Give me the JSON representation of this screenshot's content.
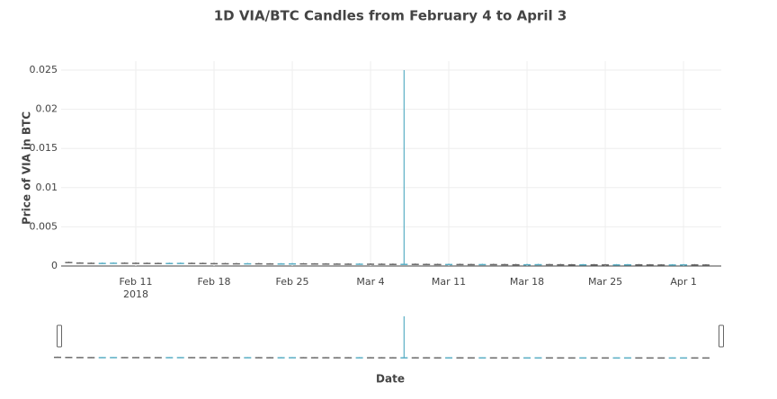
{
  "chart_data": {
    "type": "candlestick",
    "title": "1D VIA/BTC Candles from February 4 to April 3",
    "x_label": "Date",
    "y_label": "Price of VIA in BTC",
    "x": [
      "2018-02-04",
      "2018-02-05",
      "2018-02-06",
      "2018-02-07",
      "2018-02-08",
      "2018-02-09",
      "2018-02-10",
      "2018-02-11",
      "2018-02-12",
      "2018-02-13",
      "2018-02-14",
      "2018-02-15",
      "2018-02-16",
      "2018-02-17",
      "2018-02-18",
      "2018-02-19",
      "2018-02-20",
      "2018-02-21",
      "2018-02-22",
      "2018-02-23",
      "2018-02-24",
      "2018-02-25",
      "2018-02-26",
      "2018-02-27",
      "2018-02-28",
      "2018-03-01",
      "2018-03-02",
      "2018-03-03",
      "2018-03-04",
      "2018-03-05",
      "2018-03-06",
      "2018-03-07",
      "2018-03-08",
      "2018-03-09",
      "2018-03-10",
      "2018-03-11",
      "2018-03-12",
      "2018-03-13",
      "2018-03-14",
      "2018-03-15",
      "2018-03-16",
      "2018-03-17",
      "2018-03-18",
      "2018-03-19",
      "2018-03-20",
      "2018-03-21",
      "2018-03-22",
      "2018-03-23",
      "2018-03-24",
      "2018-03-25",
      "2018-03-26",
      "2018-03-27",
      "2018-03-28",
      "2018-03-29",
      "2018-03-30",
      "2018-03-31",
      "2018-04-01",
      "2018-04-02",
      "2018-04-03"
    ],
    "open": [
      0.0006,
      0.00052,
      0.00045,
      0.00042,
      0.0004,
      0.00041,
      0.00043,
      0.00042,
      0.00041,
      0.0004,
      0.00039,
      0.0004,
      0.00041,
      0.0004,
      0.00038,
      0.00037,
      0.00036,
      0.00035,
      0.00036,
      0.00034,
      0.00033,
      0.00034,
      0.00035,
      0.00034,
      0.00033,
      0.00032,
      0.00031,
      0.0003,
      0.00031,
      0.0003,
      0.00029,
      0.00028,
      0.00029,
      0.00028,
      0.00027,
      0.00026,
      0.00027,
      0.00026,
      0.00025,
      0.00026,
      0.00025,
      0.00024,
      0.00023,
      0.00024,
      0.00025,
      0.00024,
      0.00023,
      0.00022,
      0.00023,
      0.00022,
      0.00021,
      0.00022,
      0.00023,
      0.00022,
      0.00021,
      0.0002,
      0.00021,
      0.00022,
      0.00021
    ],
    "high": [
      0.00063,
      0.00055,
      0.00048,
      0.00045,
      0.00044,
      0.00046,
      0.00046,
      0.00045,
      0.00044,
      0.00043,
      0.00043,
      0.00044,
      0.00044,
      0.00043,
      0.00041,
      0.0004,
      0.00039,
      0.00039,
      0.00039,
      0.00037,
      0.00037,
      0.00038,
      0.00038,
      0.00037,
      0.00036,
      0.00035,
      0.00034,
      0.00034,
      0.00034,
      0.00033,
      0.00032,
      0.025,
      0.00032,
      0.00031,
      0.0003,
      0.0003,
      0.0003,
      0.00029,
      0.00029,
      0.00029,
      0.00028,
      0.00027,
      0.00027,
      0.00028,
      0.00028,
      0.00027,
      0.00026,
      0.00026,
      0.00026,
      0.00025,
      0.00025,
      0.00026,
      0.00026,
      0.00025,
      0.00024,
      0.00024,
      0.00025,
      0.00025,
      0.00024
    ],
    "low": [
      0.00049,
      0.00042,
      0.00039,
      0.00037,
      0.00037,
      0.00038,
      0.00039,
      0.00038,
      0.00037,
      0.00036,
      0.00036,
      0.00037,
      0.00037,
      0.00035,
      0.00034,
      0.00033,
      0.00032,
      0.00032,
      0.00031,
      0.0003,
      0.0003,
      0.00031,
      0.00031,
      0.0003,
      0.00029,
      0.00028,
      0.00027,
      0.00027,
      0.00027,
      0.00026,
      0.00025,
      0.00025,
      0.00025,
      0.00024,
      0.00023,
      0.00023,
      0.00023,
      0.00022,
      0.00022,
      0.00022,
      0.00021,
      0.0002,
      0.0002,
      0.00021,
      0.00021,
      0.0002,
      0.00019,
      0.00019,
      0.00019,
      0.00018,
      0.00018,
      0.00019,
      0.00019,
      0.00018,
      0.00017,
      0.00017,
      0.00018,
      0.00018,
      0.00017
    ],
    "close": [
      0.00052,
      0.00045,
      0.00042,
      0.0004,
      0.00041,
      0.00043,
      0.00042,
      0.00041,
      0.0004,
      0.00039,
      0.0004,
      0.00041,
      0.0004,
      0.00038,
      0.00037,
      0.00036,
      0.00035,
      0.00036,
      0.00034,
      0.00033,
      0.00034,
      0.00035,
      0.00034,
      0.00033,
      0.00032,
      0.00031,
      0.0003,
      0.00031,
      0.0003,
      0.00029,
      0.00028,
      0.00029,
      0.00028,
      0.00027,
      0.00026,
      0.00027,
      0.00026,
      0.00025,
      0.00026,
      0.00025,
      0.00024,
      0.00023,
      0.00024,
      0.00025,
      0.00024,
      0.00023,
      0.00022,
      0.00023,
      0.00022,
      0.00021,
      0.00022,
      0.00023,
      0.00022,
      0.00021,
      0.0002,
      0.00021,
      0.00022,
      0.00021,
      0.0002
    ],
    "increasing_color": "#5aaec4",
    "decreasing_color": "#6b6b6b",
    "ylim": [
      0,
      0.025
    ],
    "yticks": [
      0,
      0.005,
      0.01,
      0.015,
      0.02,
      0.025
    ],
    "xticks": [
      {
        "value": "2018-02-11",
        "label": "Feb 11"
      },
      {
        "value": "2018-02-18",
        "label": "Feb 18"
      },
      {
        "value": "2018-02-25",
        "label": "Feb 25"
      },
      {
        "value": "2018-03-04",
        "label": "Mar 4"
      },
      {
        "value": "2018-03-11",
        "label": "Mar 11"
      },
      {
        "value": "2018-03-18",
        "label": "Mar 18"
      },
      {
        "value": "2018-03-25",
        "label": "Mar 25"
      },
      {
        "value": "2018-04-01",
        "label": "Apr 1"
      }
    ],
    "x_year_label": "2018",
    "grid": true,
    "range_slider": true
  }
}
